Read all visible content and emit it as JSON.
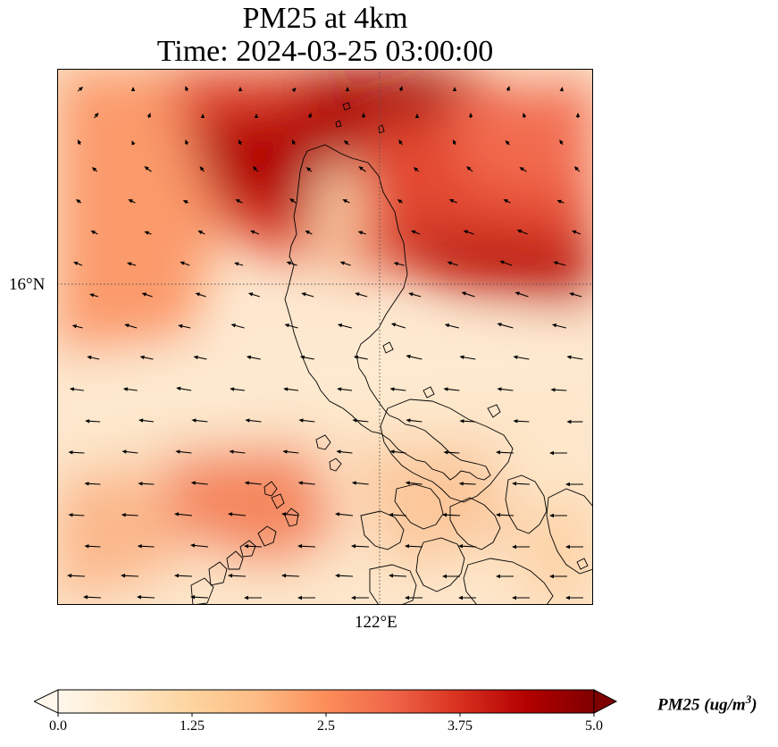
{
  "title_line1": "PM25 at 4km",
  "title_line2": "Time: 2024-03-25 03:00:00",
  "map": {
    "lat_label": "16°N",
    "lon_label": "122°E",
    "gridline_style": "dotted",
    "vector_field": "wind arrows, predominantly from east-southeast"
  },
  "colorbar": {
    "label_text": "PM25 (ug/m",
    "label_superscript": "3",
    "label_close": ")",
    "min": 0.0,
    "max": 5.0,
    "ticks": [
      "0.0",
      "1.25",
      "2.5",
      "3.75",
      "5.0"
    ],
    "colormap": "OrRd",
    "colors": [
      "#fff7ec",
      "#fee8c8",
      "#fdd49e",
      "#fdbb84",
      "#fc8d59",
      "#ef6548",
      "#d7301f",
      "#b30000",
      "#7f0000"
    ],
    "extend": "both"
  },
  "colors": {
    "coastline": "#000000",
    "arrow": "#000000",
    "gridline": "#555555"
  }
}
